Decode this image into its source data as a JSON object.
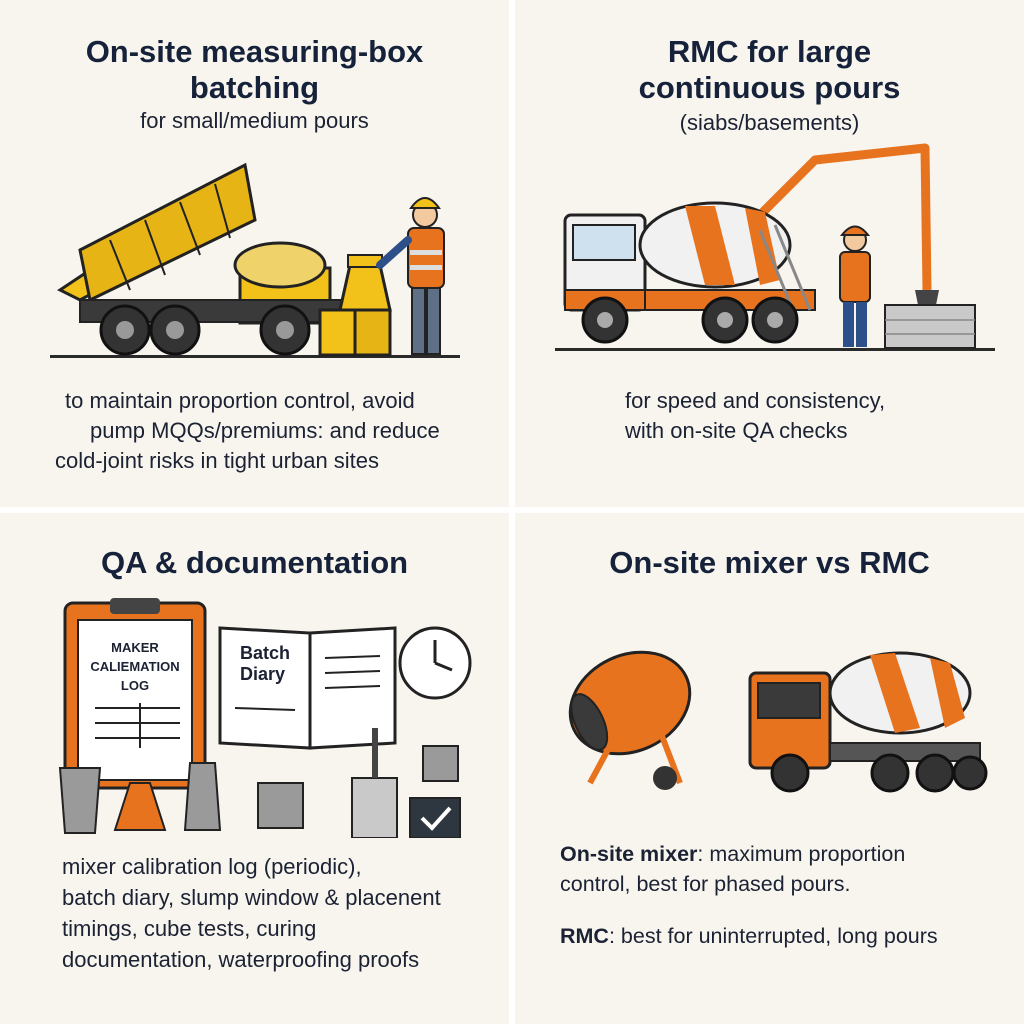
{
  "panels": {
    "measuring_box": {
      "title_line1": "On-site measuring-box",
      "title_line2": "batching",
      "subtitle": "for small/medium pours",
      "body_line1": "to maintain proportion control, avoid",
      "body_line2": "pump MQQs/premiums: and reduce",
      "body_line3": "cold-joint risks in tight urban sites"
    },
    "rmc": {
      "title_line1": "RMC for large",
      "title_line2": "continuous pours",
      "subtitle": "(siabs/basements)",
      "body_line1": "for speed and consistency,",
      "body_line2": "with on-site QA checks"
    },
    "qa": {
      "title": "QA & documentation",
      "clipboard_line1": "MAKER",
      "clipboard_line2": "CALIEMATION",
      "clipboard_line3": "LOG",
      "diary_line1": "Batch",
      "diary_line2": "Diary",
      "body_line1": "mixer calibration log (periodic),",
      "body_line2": "batch diary, slump window & placenent",
      "body_line3": "timings, cube tests, curing",
      "body_line4": "documentation, waterproofing proofs"
    },
    "comparison": {
      "title": "On-site mixer vs RMC",
      "mixer_label": "On-site mixer",
      "mixer_text_a": ": maximum proportion",
      "mixer_text_b": "control, best for phased pours.",
      "rmc_label": "RMC",
      "rmc_text": ": best for uninterrupted, long pours"
    }
  },
  "colors": {
    "panel_bg": "#f8f5ef",
    "title": "#16223a",
    "orange": "#e8731f",
    "yellow": "#f2c21b",
    "navy": "#1f3f73"
  }
}
